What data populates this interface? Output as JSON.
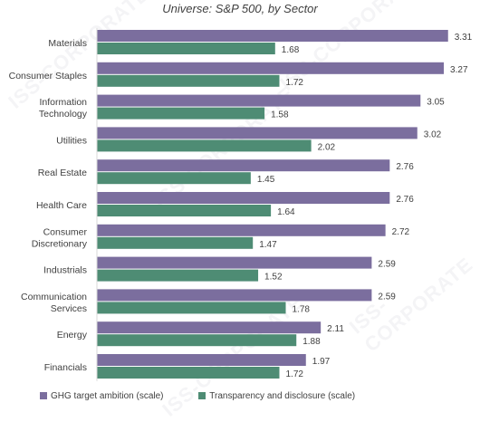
{
  "subtitle": "Universe: S&P 500, by Sector",
  "watermark": "ISS-CORPORATE",
  "colors": {
    "series1": "#7b6e9e",
    "series2": "#4e8c74",
    "text": "#404040"
  },
  "chart_data": {
    "type": "bar",
    "orientation": "horizontal",
    "title": "",
    "subtitle": "Universe: S&P 500, by Sector",
    "categories": [
      [
        "Materials"
      ],
      [
        "Consumer Staples"
      ],
      [
        "Information",
        "Technology"
      ],
      [
        "Utilities"
      ],
      [
        "Real Estate"
      ],
      [
        "Health Care"
      ],
      [
        "Consumer",
        "Discretionary"
      ],
      [
        "Industrials"
      ],
      [
        "Communication",
        "Services"
      ],
      [
        "Energy"
      ],
      [
        "Financials"
      ]
    ],
    "series": [
      {
        "name": "GHG target ambition (scale)",
        "values": [
          3.31,
          3.27,
          3.05,
          3.02,
          2.76,
          2.76,
          2.72,
          2.59,
          2.59,
          2.11,
          1.97
        ]
      },
      {
        "name": "Transparency and disclosure (scale)",
        "values": [
          1.68,
          1.72,
          1.58,
          2.02,
          1.45,
          1.64,
          1.47,
          1.52,
          1.78,
          1.88,
          1.72
        ]
      }
    ],
    "xlim": [
      0,
      3.5
    ],
    "grid": false,
    "legend": "bottom"
  }
}
